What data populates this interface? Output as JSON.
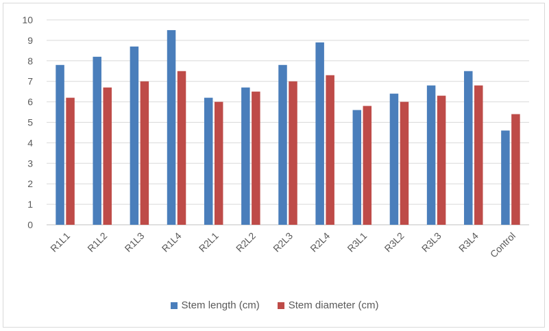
{
  "chart_data": {
    "type": "bar",
    "title": "",
    "xlabel": "",
    "ylabel": "",
    "ylim": [
      0,
      10
    ],
    "yticks": [
      "0",
      "1",
      "2",
      "3",
      "4",
      "5",
      "6",
      "7",
      "8",
      "9",
      "10"
    ],
    "grid": true,
    "legend": "bottom",
    "categories": [
      "R1L1",
      "R1L2",
      "R1L3",
      "R1L4",
      "R2L1",
      "R2L2",
      "R2L3",
      "R2L4",
      "R3L1",
      "R3L2",
      "R3L3",
      "R3L4",
      "Control"
    ],
    "series": [
      {
        "name": "Stem length (cm)",
        "color": "#4a7ebb",
        "values": [
          7.8,
          8.2,
          8.7,
          9.5,
          6.2,
          6.7,
          7.8,
          8.9,
          5.6,
          6.4,
          6.8,
          7.5,
          4.6
        ]
      },
      {
        "name": "Stem diameter (cm)",
        "color": "#be4b48",
        "values": [
          6.2,
          6.7,
          7.0,
          7.5,
          6.0,
          6.5,
          7.0,
          7.3,
          5.8,
          6.0,
          6.3,
          6.8,
          5.4
        ]
      }
    ]
  }
}
